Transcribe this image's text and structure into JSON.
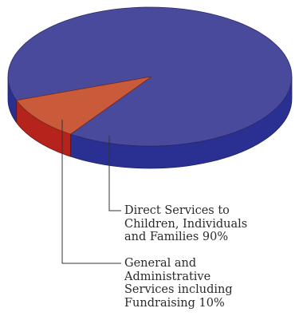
{
  "chart_data": {
    "type": "pie",
    "title": "",
    "slices": [
      {
        "label": "Direct Services to\nChildren, Individuals\nand Families 90%",
        "value": 90,
        "top_color": "#4a4a9c",
        "side_color": "#2a3092"
      },
      {
        "label": "General and\nAdministrative\nServices including\nFundraising 10%",
        "value": 10,
        "top_color": "#c95a3a",
        "side_color": "#b5231c"
      }
    ],
    "style": "3d",
    "legend": "callout-labels"
  }
}
